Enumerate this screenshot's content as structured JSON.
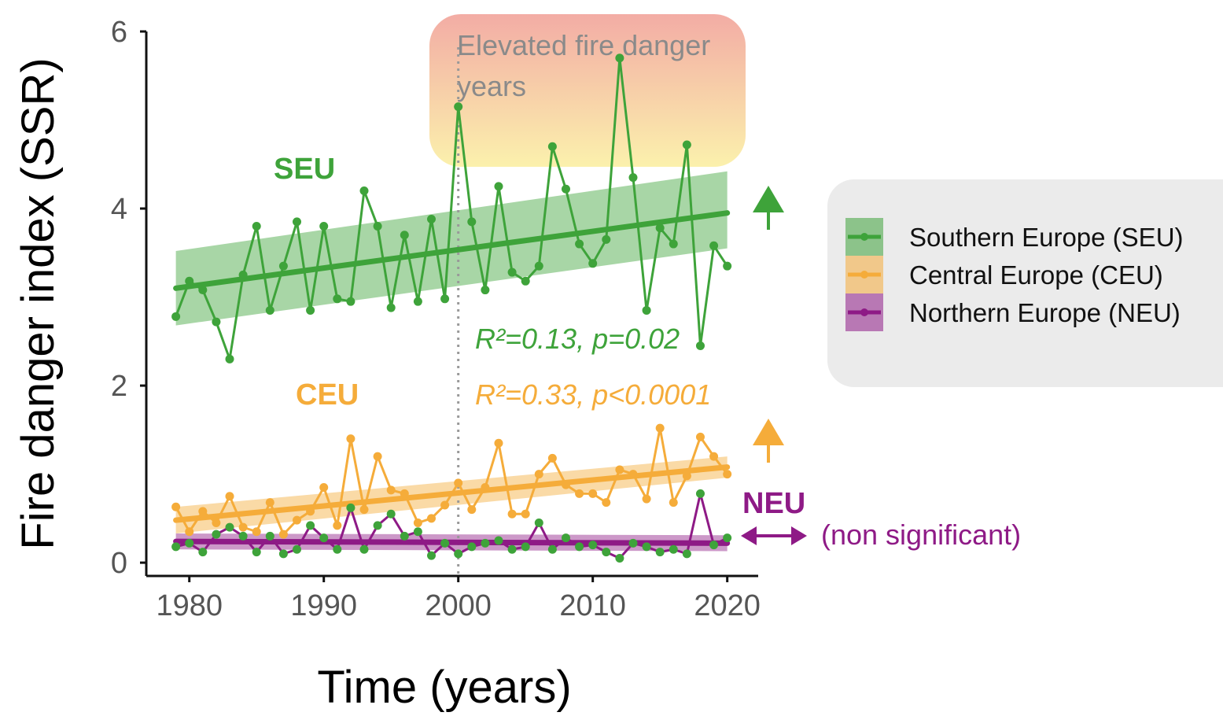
{
  "chart_data": {
    "type": "line",
    "xlabel": "Time (years)",
    "ylabel": "Fire danger index (SSR)",
    "xlim": [
      1976.8,
      2022.3
    ],
    "ylim": [
      -0.15,
      6.0
    ],
    "xticks": [
      1980,
      1990,
      2000,
      2010,
      2020
    ],
    "yticks": [
      0,
      2,
      4,
      6
    ],
    "grid": false,
    "colors": {
      "seu": "#3ea33a",
      "ceu": "#f5ac3a",
      "neu": "#8e1a86",
      "seu_band": "#3ea33a",
      "ceu_band": "#f5ac3a",
      "neu_band": "#8e1a86"
    },
    "x": [
      1979,
      1980,
      1981,
      1982,
      1983,
      1984,
      1985,
      1986,
      1987,
      1988,
      1989,
      1990,
      1991,
      1992,
      1993,
      1994,
      1995,
      1996,
      1997,
      1998,
      1999,
      2000,
      2001,
      2002,
      2003,
      2004,
      2005,
      2006,
      2007,
      2008,
      2009,
      2010,
      2011,
      2012,
      2013,
      2014,
      2015,
      2016,
      2017,
      2018,
      2019,
      2020
    ],
    "series": [
      {
        "key": "seu",
        "name": "Southern Europe (SEU)",
        "values": [
          2.78,
          3.18,
          3.08,
          2.72,
          2.3,
          3.25,
          3.8,
          2.85,
          3.35,
          3.85,
          2.85,
          3.8,
          2.98,
          2.95,
          4.2,
          3.8,
          2.88,
          3.7,
          2.95,
          3.88,
          2.98,
          5.15,
          3.85,
          3.08,
          4.25,
          3.28,
          3.18,
          3.35,
          4.7,
          4.22,
          3.6,
          3.38,
          3.65,
          5.7,
          4.35,
          2.85,
          3.78,
          3.6,
          4.72,
          2.45,
          3.58,
          3.35
        ],
        "trend": [
          3.1,
          3.95
        ],
        "band_halfwidth": [
          0.42,
          0.42
        ]
      },
      {
        "key": "ceu",
        "name": "Central Europe (CEU)",
        "values": [
          0.63,
          0.35,
          0.58,
          0.45,
          0.75,
          0.4,
          0.35,
          0.68,
          0.32,
          0.48,
          0.58,
          0.85,
          0.42,
          1.4,
          0.6,
          1.2,
          0.82,
          0.78,
          0.45,
          0.5,
          0.65,
          0.9,
          0.6,
          0.85,
          1.35,
          0.55,
          0.55,
          1.0,
          1.18,
          0.88,
          0.78,
          0.78,
          0.68,
          1.05,
          1.0,
          0.72,
          1.52,
          0.68,
          0.98,
          1.42,
          1.2,
          1.0
        ],
        "trend": [
          0.48,
          1.08
        ],
        "band_halfwidth": [
          0.15,
          0.12
        ]
      },
      {
        "key": "neu",
        "name": "Northern Europe (NEU)",
        "values": [
          0.18,
          0.22,
          0.12,
          0.32,
          0.4,
          0.3,
          0.12,
          0.3,
          0.1,
          0.15,
          0.42,
          0.28,
          0.15,
          0.62,
          0.15,
          0.42,
          0.55,
          0.3,
          0.35,
          0.08,
          0.22,
          0.1,
          0.18,
          0.22,
          0.25,
          0.15,
          0.18,
          0.45,
          0.15,
          0.28,
          0.18,
          0.2,
          0.12,
          0.05,
          0.22,
          0.18,
          0.12,
          0.15,
          0.1,
          0.78,
          0.2,
          0.28
        ],
        "trend": [
          0.24,
          0.22
        ],
        "band_halfwidth": [
          0.09,
          0.09
        ]
      }
    ],
    "highlight_box": {
      "label_line1": "Elevated fire danger",
      "label_line2": "years",
      "x_range": [
        1997.8,
        2020.9
      ],
      "y_range": [
        4.5,
        6.25
      ]
    },
    "vline_x": 2000,
    "annotations": {
      "seu_stats": "R²=0.13, p=0.02",
      "ceu_stats": "R²=0.33, p<0.0001",
      "neu_note": "(non significant)",
      "seu_label": "SEU",
      "ceu_label": "CEU",
      "neu_label": "NEU"
    },
    "legend_position": "right"
  }
}
